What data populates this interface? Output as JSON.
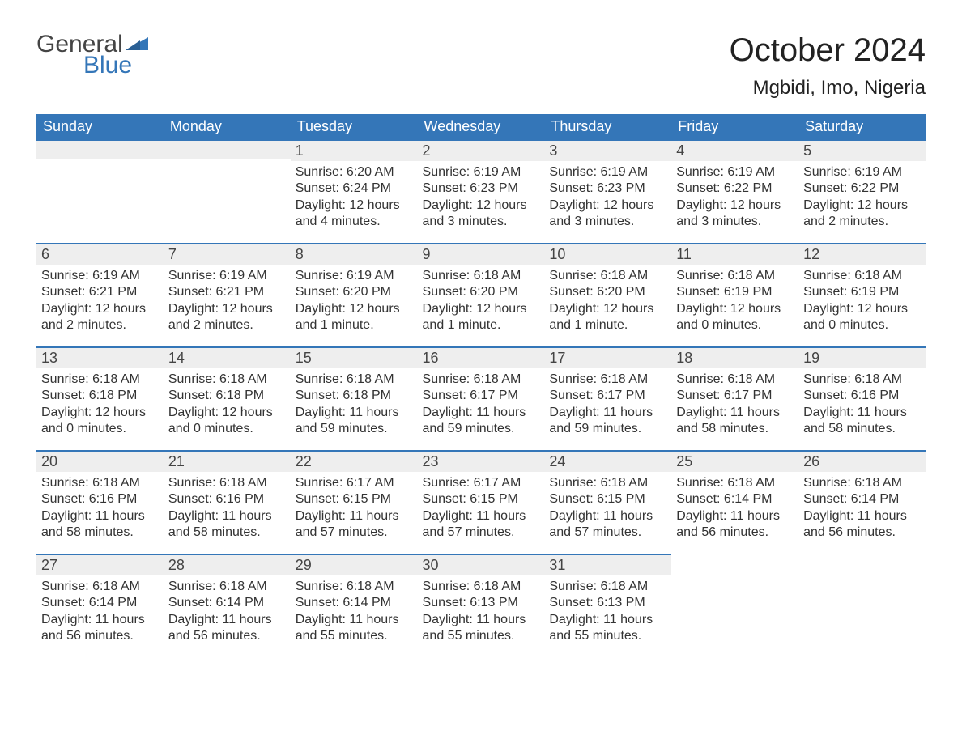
{
  "logo": {
    "general": "General",
    "blue": "Blue"
  },
  "header": {
    "month_title": "October 2024",
    "location": "Mgbidi, Imo, Nigeria"
  },
  "colors": {
    "header_bg": "#3476b8",
    "header_text": "#ffffff",
    "daynum_bg": "#eeeeee",
    "daynum_border": "#3476b8",
    "body_text": "#333333",
    "title_text": "#222222",
    "logo_gray": "#444444",
    "logo_blue": "#3476b8",
    "page_bg": "#ffffff"
  },
  "weekdays": [
    "Sunday",
    "Monday",
    "Tuesday",
    "Wednesday",
    "Thursday",
    "Friday",
    "Saturday"
  ],
  "weeks": [
    [
      {
        "empty": true
      },
      {
        "empty": true
      },
      {
        "day": "1",
        "sunrise": "Sunrise: 6:20 AM",
        "sunset": "Sunset: 6:24 PM",
        "dl1": "Daylight: 12 hours",
        "dl2": "and 4 minutes."
      },
      {
        "day": "2",
        "sunrise": "Sunrise: 6:19 AM",
        "sunset": "Sunset: 6:23 PM",
        "dl1": "Daylight: 12 hours",
        "dl2": "and 3 minutes."
      },
      {
        "day": "3",
        "sunrise": "Sunrise: 6:19 AM",
        "sunset": "Sunset: 6:23 PM",
        "dl1": "Daylight: 12 hours",
        "dl2": "and 3 minutes."
      },
      {
        "day": "4",
        "sunrise": "Sunrise: 6:19 AM",
        "sunset": "Sunset: 6:22 PM",
        "dl1": "Daylight: 12 hours",
        "dl2": "and 3 minutes."
      },
      {
        "day": "5",
        "sunrise": "Sunrise: 6:19 AM",
        "sunset": "Sunset: 6:22 PM",
        "dl1": "Daylight: 12 hours",
        "dl2": "and 2 minutes."
      }
    ],
    [
      {
        "day": "6",
        "sunrise": "Sunrise: 6:19 AM",
        "sunset": "Sunset: 6:21 PM",
        "dl1": "Daylight: 12 hours",
        "dl2": "and 2 minutes."
      },
      {
        "day": "7",
        "sunrise": "Sunrise: 6:19 AM",
        "sunset": "Sunset: 6:21 PM",
        "dl1": "Daylight: 12 hours",
        "dl2": "and 2 minutes."
      },
      {
        "day": "8",
        "sunrise": "Sunrise: 6:19 AM",
        "sunset": "Sunset: 6:20 PM",
        "dl1": "Daylight: 12 hours",
        "dl2": "and 1 minute."
      },
      {
        "day": "9",
        "sunrise": "Sunrise: 6:18 AM",
        "sunset": "Sunset: 6:20 PM",
        "dl1": "Daylight: 12 hours",
        "dl2": "and 1 minute."
      },
      {
        "day": "10",
        "sunrise": "Sunrise: 6:18 AM",
        "sunset": "Sunset: 6:20 PM",
        "dl1": "Daylight: 12 hours",
        "dl2": "and 1 minute."
      },
      {
        "day": "11",
        "sunrise": "Sunrise: 6:18 AM",
        "sunset": "Sunset: 6:19 PM",
        "dl1": "Daylight: 12 hours",
        "dl2": "and 0 minutes."
      },
      {
        "day": "12",
        "sunrise": "Sunrise: 6:18 AM",
        "sunset": "Sunset: 6:19 PM",
        "dl1": "Daylight: 12 hours",
        "dl2": "and 0 minutes."
      }
    ],
    [
      {
        "day": "13",
        "sunrise": "Sunrise: 6:18 AM",
        "sunset": "Sunset: 6:18 PM",
        "dl1": "Daylight: 12 hours",
        "dl2": "and 0 minutes."
      },
      {
        "day": "14",
        "sunrise": "Sunrise: 6:18 AM",
        "sunset": "Sunset: 6:18 PM",
        "dl1": "Daylight: 12 hours",
        "dl2": "and 0 minutes."
      },
      {
        "day": "15",
        "sunrise": "Sunrise: 6:18 AM",
        "sunset": "Sunset: 6:18 PM",
        "dl1": "Daylight: 11 hours",
        "dl2": "and 59 minutes."
      },
      {
        "day": "16",
        "sunrise": "Sunrise: 6:18 AM",
        "sunset": "Sunset: 6:17 PM",
        "dl1": "Daylight: 11 hours",
        "dl2": "and 59 minutes."
      },
      {
        "day": "17",
        "sunrise": "Sunrise: 6:18 AM",
        "sunset": "Sunset: 6:17 PM",
        "dl1": "Daylight: 11 hours",
        "dl2": "and 59 minutes."
      },
      {
        "day": "18",
        "sunrise": "Sunrise: 6:18 AM",
        "sunset": "Sunset: 6:17 PM",
        "dl1": "Daylight: 11 hours",
        "dl2": "and 58 minutes."
      },
      {
        "day": "19",
        "sunrise": "Sunrise: 6:18 AM",
        "sunset": "Sunset: 6:16 PM",
        "dl1": "Daylight: 11 hours",
        "dl2": "and 58 minutes."
      }
    ],
    [
      {
        "day": "20",
        "sunrise": "Sunrise: 6:18 AM",
        "sunset": "Sunset: 6:16 PM",
        "dl1": "Daylight: 11 hours",
        "dl2": "and 58 minutes."
      },
      {
        "day": "21",
        "sunrise": "Sunrise: 6:18 AM",
        "sunset": "Sunset: 6:16 PM",
        "dl1": "Daylight: 11 hours",
        "dl2": "and 58 minutes."
      },
      {
        "day": "22",
        "sunrise": "Sunrise: 6:17 AM",
        "sunset": "Sunset: 6:15 PM",
        "dl1": "Daylight: 11 hours",
        "dl2": "and 57 minutes."
      },
      {
        "day": "23",
        "sunrise": "Sunrise: 6:17 AM",
        "sunset": "Sunset: 6:15 PM",
        "dl1": "Daylight: 11 hours",
        "dl2": "and 57 minutes."
      },
      {
        "day": "24",
        "sunrise": "Sunrise: 6:18 AM",
        "sunset": "Sunset: 6:15 PM",
        "dl1": "Daylight: 11 hours",
        "dl2": "and 57 minutes."
      },
      {
        "day": "25",
        "sunrise": "Sunrise: 6:18 AM",
        "sunset": "Sunset: 6:14 PM",
        "dl1": "Daylight: 11 hours",
        "dl2": "and 56 minutes."
      },
      {
        "day": "26",
        "sunrise": "Sunrise: 6:18 AM",
        "sunset": "Sunset: 6:14 PM",
        "dl1": "Daylight: 11 hours",
        "dl2": "and 56 minutes."
      }
    ],
    [
      {
        "day": "27",
        "sunrise": "Sunrise: 6:18 AM",
        "sunset": "Sunset: 6:14 PM",
        "dl1": "Daylight: 11 hours",
        "dl2": "and 56 minutes."
      },
      {
        "day": "28",
        "sunrise": "Sunrise: 6:18 AM",
        "sunset": "Sunset: 6:14 PM",
        "dl1": "Daylight: 11 hours",
        "dl2": "and 56 minutes."
      },
      {
        "day": "29",
        "sunrise": "Sunrise: 6:18 AM",
        "sunset": "Sunset: 6:14 PM",
        "dl1": "Daylight: 11 hours",
        "dl2": "and 55 minutes."
      },
      {
        "day": "30",
        "sunrise": "Sunrise: 6:18 AM",
        "sunset": "Sunset: 6:13 PM",
        "dl1": "Daylight: 11 hours",
        "dl2": "and 55 minutes."
      },
      {
        "day": "31",
        "sunrise": "Sunrise: 6:18 AM",
        "sunset": "Sunset: 6:13 PM",
        "dl1": "Daylight: 11 hours",
        "dl2": "and 55 minutes."
      },
      {
        "empty": true,
        "noheader": true
      },
      {
        "empty": true,
        "noheader": true
      }
    ]
  ]
}
